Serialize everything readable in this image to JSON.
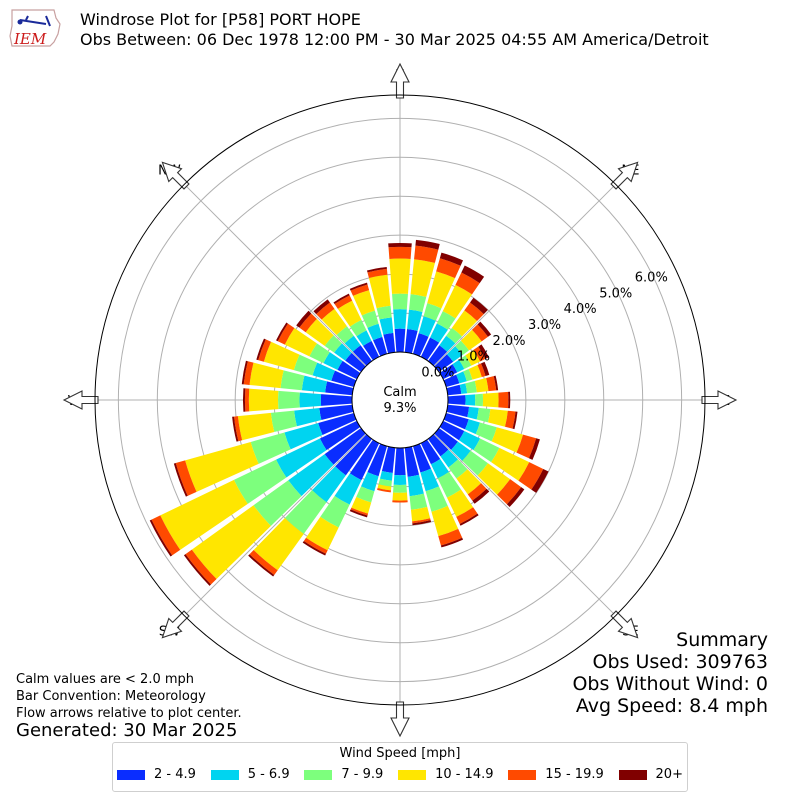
{
  "header": {
    "title": "Windrose Plot for [P58] PORT HOPE",
    "subtitle": "Obs Between: 06 Dec 1978 12:00 PM - 30 Mar 2025 04:55 AM America/Detroit",
    "logo_text": "IEM"
  },
  "notes": {
    "calm_note": "Calm values are < 2.0 mph",
    "bar_convention": "Bar Convention: Meteorology",
    "flow_note": "Flow arrows relative to plot center.",
    "generated": "Generated: 30 Mar 2025"
  },
  "summary": {
    "title": "Summary",
    "obs_used": "Obs Used: 309763",
    "obs_without_wind": "Obs Without Wind: 0",
    "avg_speed": "Avg Speed: 8.4 mph"
  },
  "calm": {
    "label": "Calm",
    "value": "9.3%"
  },
  "legend": {
    "title": "Wind Speed [mph]",
    "items": [
      {
        "label": "2 - 4.9",
        "color": "#0a2dff"
      },
      {
        "label": "5 - 6.9",
        "color": "#00d4f0"
      },
      {
        "label": "7 - 9.9",
        "color": "#7dff7d"
      },
      {
        "label": "10 - 14.9",
        "color": "#ffe600"
      },
      {
        "label": "15 - 19.9",
        "color": "#ff4a00"
      },
      {
        "label": "20+",
        "color": "#800000"
      }
    ]
  },
  "chart_data": {
    "type": "windrose",
    "directions_deg": [
      0,
      10,
      20,
      30,
      40,
      50,
      60,
      70,
      80,
      90,
      100,
      110,
      120,
      130,
      140,
      150,
      160,
      170,
      180,
      190,
      200,
      210,
      220,
      230,
      240,
      250,
      260,
      270,
      280,
      290,
      300,
      310,
      320,
      330,
      340,
      350
    ],
    "compass_labels": [
      {
        "label": "N",
        "deg": 0
      },
      {
        "label": "NE",
        "deg": 45
      },
      {
        "label": "E",
        "deg": 90
      },
      {
        "label": "SE",
        "deg": 135
      },
      {
        "label": "S",
        "deg": 180
      },
      {
        "label": "SW",
        "deg": 225
      },
      {
        "label": "W",
        "deg": 270
      },
      {
        "label": "NW",
        "deg": 315
      }
    ],
    "r_ticks": [
      0,
      1,
      2,
      3,
      4,
      5,
      6
    ],
    "r_tick_labels": [
      "0.0%",
      "1.0%",
      "2.0%",
      "3.0%",
      "4.0%",
      "5.0%",
      "6.0%"
    ],
    "rmax": 6.6,
    "series_names": [
      "2 - 4.9",
      "5 - 6.9",
      "7 - 9.9",
      "10 - 14.9",
      "15 - 19.9",
      "20+"
    ],
    "cumulative_percent": [
      [
        0.6,
        1.1,
        1.5,
        2.4,
        2.7,
        2.8
      ],
      [
        0.6,
        1.1,
        1.5,
        2.4,
        2.75,
        2.9
      ],
      [
        0.55,
        1.0,
        1.35,
        2.2,
        2.55,
        2.7
      ],
      [
        0.55,
        0.95,
        1.3,
        2.05,
        2.4,
        2.6
      ],
      [
        0.5,
        0.8,
        1.05,
        1.6,
        1.85,
        2.0
      ],
      [
        0.45,
        0.75,
        0.95,
        1.35,
        1.55,
        1.65
      ],
      [
        0.4,
        0.6,
        0.8,
        1.05,
        1.2,
        1.3
      ],
      [
        0.35,
        0.55,
        0.7,
        0.95,
        1.05,
        1.15
      ],
      [
        0.35,
        0.5,
        0.75,
        1.05,
        1.25,
        1.3
      ],
      [
        0.45,
        0.7,
        0.9,
        1.3,
        1.55,
        1.6
      ],
      [
        0.55,
        0.8,
        1.1,
        1.55,
        1.75,
        1.8
      ],
      [
        0.6,
        0.9,
        1.35,
        2.05,
        2.4,
        2.5
      ],
      [
        0.6,
        1.05,
        1.6,
        2.45,
        2.85,
        3.0
      ],
      [
        0.6,
        1.0,
        1.55,
        2.25,
        2.6,
        2.7
      ],
      [
        0.55,
        0.9,
        1.25,
        1.75,
        1.95,
        2.05
      ],
      [
        0.6,
        1.0,
        1.55,
        2.1,
        2.3,
        2.35
      ],
      [
        0.7,
        1.2,
        1.75,
        2.4,
        2.65,
        2.7
      ],
      [
        0.75,
        1.25,
        1.6,
        1.9,
        1.95,
        2.0
      ],
      [
        0.7,
        0.95,
        1.15,
        1.35,
        1.4,
        1.4
      ],
      [
        0.65,
        0.85,
        1.0,
        1.1,
        1.15,
        1.15
      ],
      [
        0.8,
        1.2,
        1.5,
        1.8,
        1.85,
        1.9
      ],
      [
        1.05,
        1.75,
        2.4,
        3.05,
        3.15,
        3.2
      ],
      [
        1.15,
        2.0,
        3.0,
        4.15,
        4.3,
        4.35
      ],
      [
        1.15,
        2.3,
        3.4,
        5.35,
        5.55,
        5.6
      ],
      [
        1.05,
        2.3,
        3.5,
        5.6,
        5.85,
        5.9
      ],
      [
        0.95,
        1.85,
        2.75,
        4.5,
        4.75,
        4.8
      ],
      [
        0.85,
        1.5,
        2.1,
        2.95,
        3.05,
        3.1
      ],
      [
        0.8,
        1.35,
        1.9,
        2.65,
        2.75,
        2.8
      ],
      [
        0.7,
        1.3,
        1.85,
        2.65,
        2.8,
        2.85
      ],
      [
        0.6,
        1.1,
        1.6,
        2.4,
        2.55,
        2.6
      ],
      [
        0.55,
        0.95,
        1.35,
        2.05,
        2.25,
        2.3
      ],
      [
        0.5,
        0.85,
        1.15,
        1.75,
        1.95,
        2.05
      ],
      [
        0.5,
        0.8,
        1.1,
        1.65,
        1.85,
        1.95
      ],
      [
        0.45,
        0.75,
        1.05,
        1.6,
        1.75,
        1.8
      ],
      [
        0.45,
        0.8,
        1.15,
        1.7,
        1.85,
        1.9
      ],
      [
        0.5,
        0.9,
        1.2,
        2.0,
        2.15,
        2.2
      ]
    ]
  }
}
